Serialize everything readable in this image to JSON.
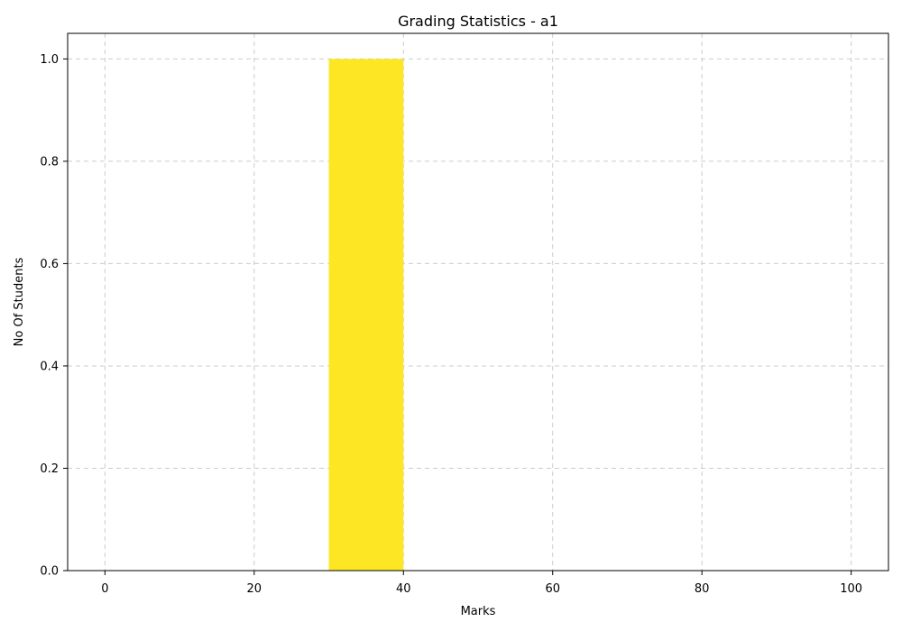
{
  "chart_data": {
    "type": "bar",
    "title": "Grading Statistics - a1",
    "xlabel": "Marks",
    "ylabel": "No Of Students",
    "xlim": [
      -5,
      105
    ],
    "ylim": [
      0,
      1.05
    ],
    "x_ticks": [
      0,
      20,
      40,
      60,
      80,
      100
    ],
    "x_tick_labels": [
      "0",
      "20",
      "40",
      "60",
      "80",
      "100"
    ],
    "y_ticks": [
      0,
      0.2,
      0.4,
      0.6,
      0.8,
      1.0
    ],
    "y_tick_labels": [
      "0.0",
      "0.2",
      "0.4",
      "0.6",
      "0.8",
      "1.0"
    ],
    "grid": true,
    "bars": [
      {
        "x_start": 30,
        "x_end": 40,
        "value": 1
      }
    ],
    "bar_color": "#fde725",
    "grid_color": "#cccccc"
  }
}
